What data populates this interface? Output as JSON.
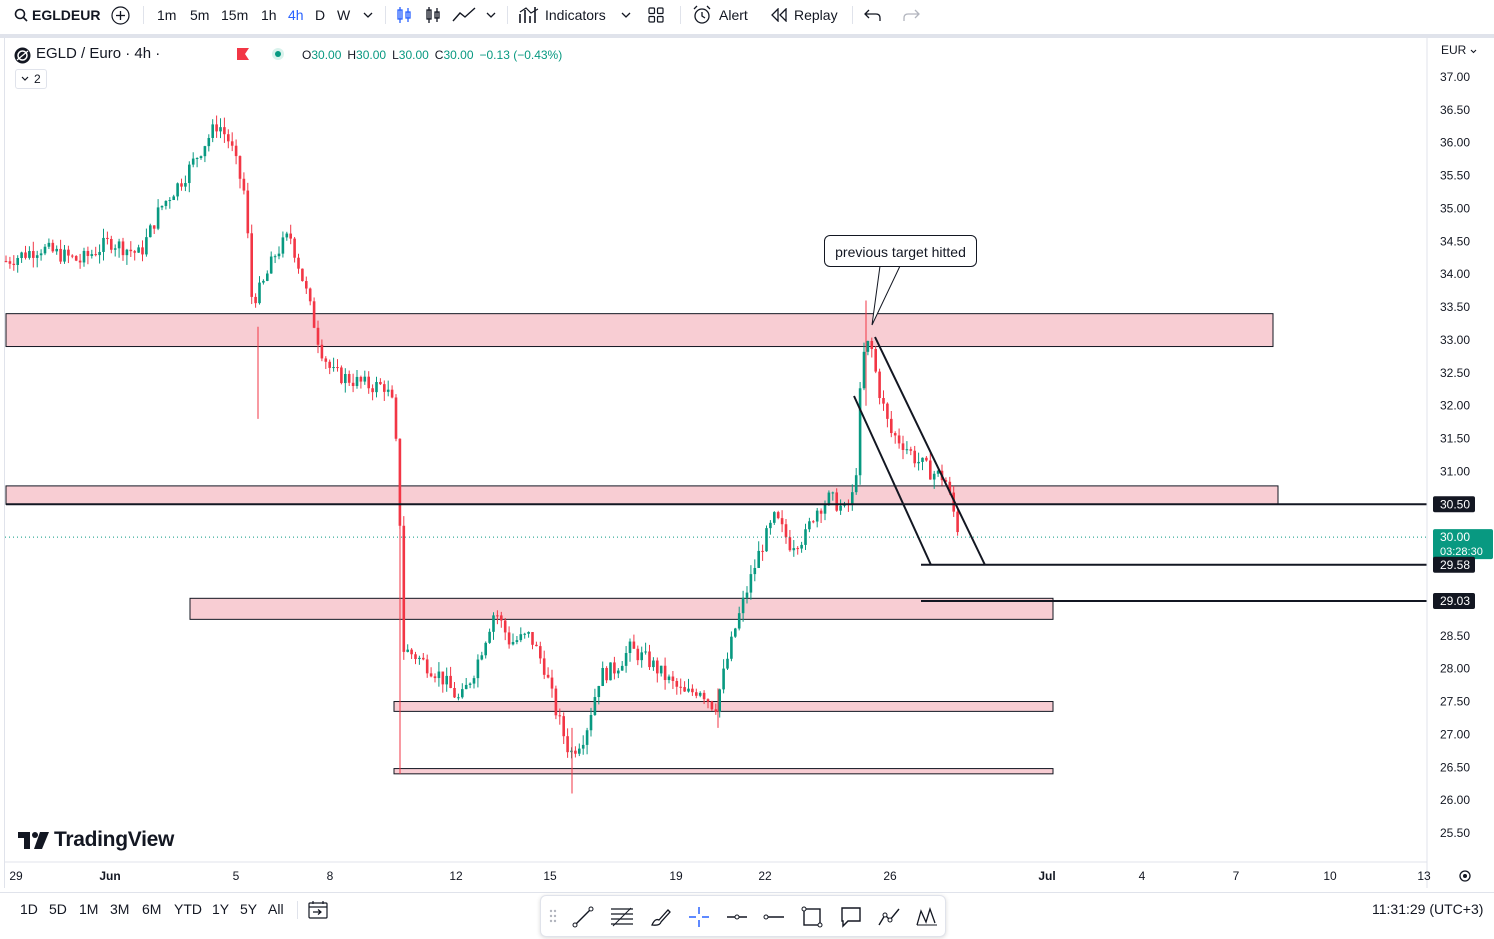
{
  "toolbar": {
    "symbol": "EGLDEUR",
    "intervals": [
      "1m",
      "5m",
      "15m",
      "1h",
      "4h",
      "D",
      "W"
    ],
    "active_interval": "4h",
    "indicators_label": "Indicators",
    "alert_label": "Alert",
    "replay_label": "Replay"
  },
  "legend": {
    "title": "EGLD / Euro · 4h ·",
    "ohlc": {
      "o_label": "O",
      "o": "30.00",
      "h_label": "H",
      "h": "30.00",
      "l_label": "L",
      "l": "30.00",
      "c_label": "C",
      "c": "30.00",
      "change": "−0.13 (−0.43%)"
    },
    "collapse_count": "2"
  },
  "currency": "EUR",
  "annotation_text": "previous target hitted",
  "price_scale": {
    "ticks": [
      "37.00",
      "36.50",
      "36.00",
      "35.50",
      "35.00",
      "34.50",
      "34.00",
      "33.50",
      "33.00",
      "32.50",
      "32.00",
      "31.50",
      "31.00",
      "28.50",
      "28.00",
      "27.50",
      "27.00",
      "26.50",
      "26.00",
      "25.50"
    ],
    "labels": [
      {
        "text": "30.50",
        "kind": "line"
      },
      {
        "text": "30.00",
        "kind": "last",
        "sub": "03:28:30"
      },
      {
        "text": "29.58",
        "kind": "line"
      },
      {
        "text": "29.03",
        "kind": "line"
      }
    ]
  },
  "time_scale": [
    "29",
    "Jun",
    "5",
    "8",
    "12",
    "15",
    "19",
    "22",
    "26",
    "Jul",
    "4",
    "7",
    "10",
    "13"
  ],
  "brand": "TradingView",
  "bottom": {
    "ranges": [
      "1D",
      "5D",
      "1M",
      "3M",
      "6M",
      "YTD",
      "1Y",
      "5Y",
      "All"
    ],
    "clock": "11:31:29 (UTC+3)"
  },
  "colors": {
    "up": "#089981",
    "down": "#f23645",
    "zone_fill": "#f8cdd3",
    "accent": "#2962ff",
    "line": "#131722"
  },
  "chart_data": {
    "type": "candlestick",
    "title": "EGLD / Euro · 4h",
    "ylim": [
      25.3,
      37.2
    ],
    "zones": [
      {
        "from": 32.9,
        "to": 33.4
      },
      {
        "from": 30.5,
        "to": 30.78
      },
      {
        "from": 28.75,
        "to": 29.07
      },
      {
        "from": 27.35,
        "to": 27.5
      },
      {
        "from": 26.4,
        "to": 26.48
      }
    ],
    "levels": [
      30.5,
      29.58,
      29.03
    ],
    "last_price": 30.0
  }
}
